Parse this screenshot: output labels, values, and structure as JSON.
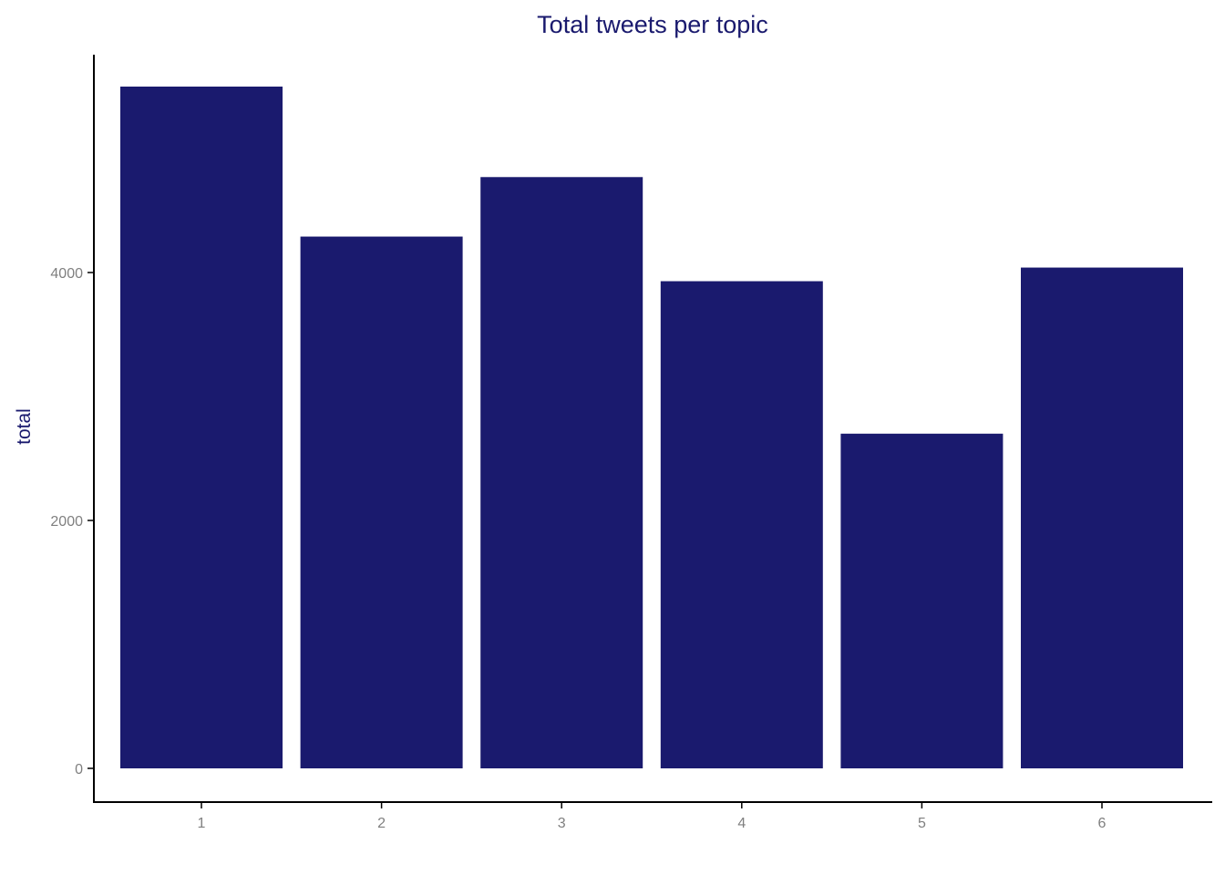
{
  "chart_data": {
    "type": "bar",
    "title": "Total tweets per topic",
    "xlabel": "",
    "ylabel": "total",
    "categories": [
      "1",
      "2",
      "3",
      "4",
      "5",
      "6"
    ],
    "values": [
      5500,
      4290,
      4770,
      3930,
      2700,
      4040
    ],
    "ylim": [
      0,
      5500
    ],
    "yticks": [
      0,
      2000,
      4000
    ],
    "ytick_labels": [
      "0",
      "2000",
      "4000"
    ],
    "grid": false,
    "legend": "none",
    "bar_color": "#1a1a6e"
  }
}
